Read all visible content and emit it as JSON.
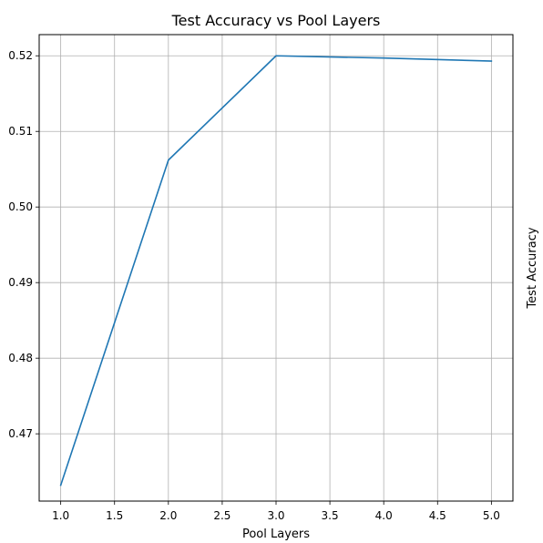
{
  "chart_data": {
    "type": "line",
    "title": "Test Accuracy vs Pool Layers",
    "xlabel": "Pool Layers",
    "ylabel": "Test Accuracy",
    "xlim": [
      0.8,
      5.2
    ],
    "ylim": [
      0.4611,
      0.5228
    ],
    "grid": true,
    "x_ticks": [
      1.0,
      1.5,
      2.0,
      2.5,
      3.0,
      3.5,
      4.0,
      4.5,
      5.0
    ],
    "x_tick_labels": [
      "1.0",
      "1.5",
      "2.0",
      "2.5",
      "3.0",
      "3.5",
      "4.0",
      "4.5",
      "5.0"
    ],
    "y_ticks": [
      0.47,
      0.48,
      0.49,
      0.5,
      0.51,
      0.52
    ],
    "y_tick_labels": [
      "0.47",
      "0.48",
      "0.49",
      "0.50",
      "0.51",
      "0.52"
    ],
    "series": [
      {
        "x": [
          1,
          2,
          3,
          4,
          5
        ],
        "y": [
          0.4632,
          0.5062,
          0.52,
          0.5197,
          0.5193
        ],
        "color": "#1f77b4"
      }
    ]
  }
}
